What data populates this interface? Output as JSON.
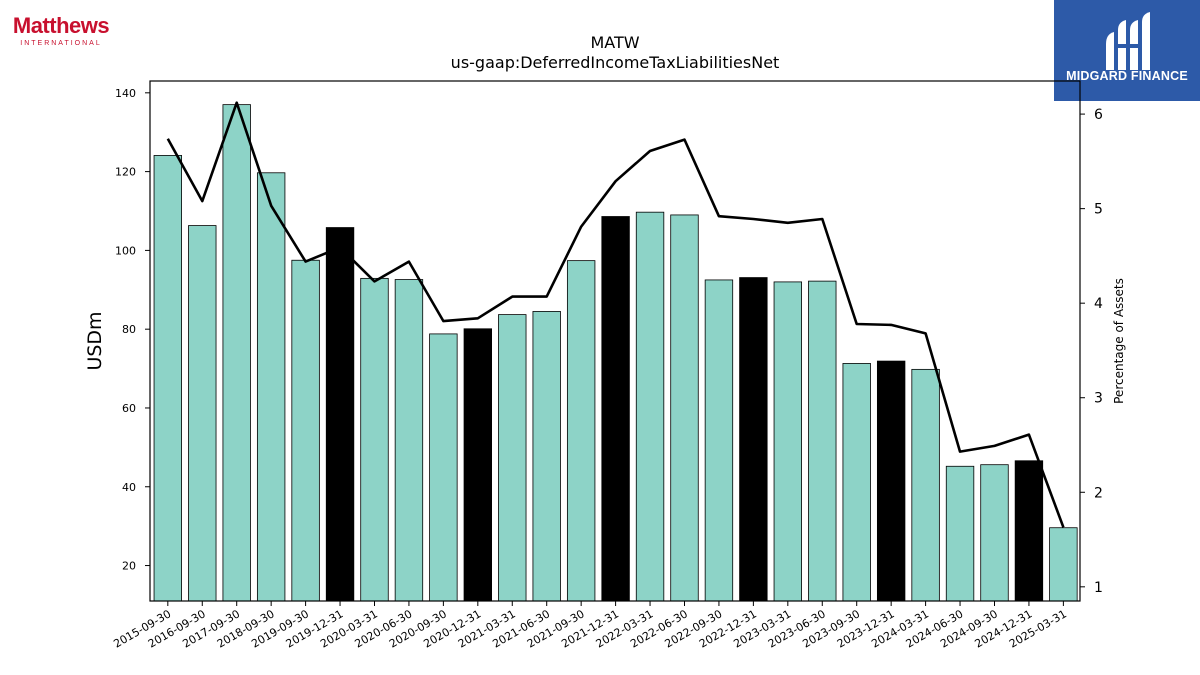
{
  "logo": {
    "company": "Matthews",
    "company_sub": "INTERNATIONAL",
    "brand": "MIDGARD FINANCE"
  },
  "colors": {
    "bar_normal": "#8dd3c7",
    "bar_highlight": "#000000",
    "line": "#000000",
    "company_red": "#c8102e",
    "brand_blue": "#2d5aa8"
  },
  "chart_data": {
    "type": "bar",
    "title": "MATW",
    "subtitle": "us-gaap:DeferredIncomeTaxLiabilitiesNet",
    "ylabel": "USDm",
    "y2label": "Percentage of Assets",
    "ylim": [
      11,
      143
    ],
    "y2lim": [
      0.85,
      6.35
    ],
    "yticks": [
      20,
      40,
      60,
      80,
      100,
      120,
      140
    ],
    "y2ticks": [
      1,
      2,
      3,
      4,
      5,
      6
    ],
    "categories": [
      "2015-09-30",
      "2016-09-30",
      "2017-09-30",
      "2018-09-30",
      "2019-09-30",
      "2019-12-31",
      "2020-03-31",
      "2020-06-30",
      "2020-09-30",
      "2020-12-31",
      "2021-03-31",
      "2021-06-30",
      "2021-09-30",
      "2021-12-31",
      "2022-03-31",
      "2022-06-30",
      "2022-09-30",
      "2022-12-31",
      "2023-03-31",
      "2023-06-30",
      "2023-09-30",
      "2023-12-31",
      "2024-03-31",
      "2024-06-30",
      "2024-09-30",
      "2024-12-31",
      "2025-03-31"
    ],
    "series": [
      {
        "type": "bar",
        "axis": "left",
        "values": [
          124.1,
          106.3,
          137.0,
          119.7,
          97.5,
          105.8,
          92.9,
          92.6,
          78.8,
          80.1,
          83.7,
          84.5,
          97.4,
          108.6,
          109.7,
          109.0,
          92.5,
          93.1,
          92.0,
          92.2,
          71.3,
          71.9,
          69.8,
          45.2,
          45.6,
          46.6,
          29.6
        ],
        "highlight": [
          false,
          false,
          false,
          false,
          false,
          true,
          false,
          false,
          false,
          true,
          false,
          false,
          false,
          true,
          false,
          false,
          false,
          true,
          false,
          false,
          false,
          true,
          false,
          false,
          false,
          true,
          false
        ]
      },
      {
        "type": "line",
        "axis": "right",
        "values": [
          5.74,
          5.08,
          6.12,
          5.03,
          4.44,
          4.59,
          4.23,
          4.44,
          3.81,
          3.84,
          4.07,
          4.07,
          4.81,
          5.29,
          5.61,
          5.73,
          4.92,
          4.89,
          4.85,
          4.89,
          3.78,
          3.77,
          3.68,
          2.43,
          2.49,
          2.61,
          1.63
        ]
      }
    ]
  }
}
